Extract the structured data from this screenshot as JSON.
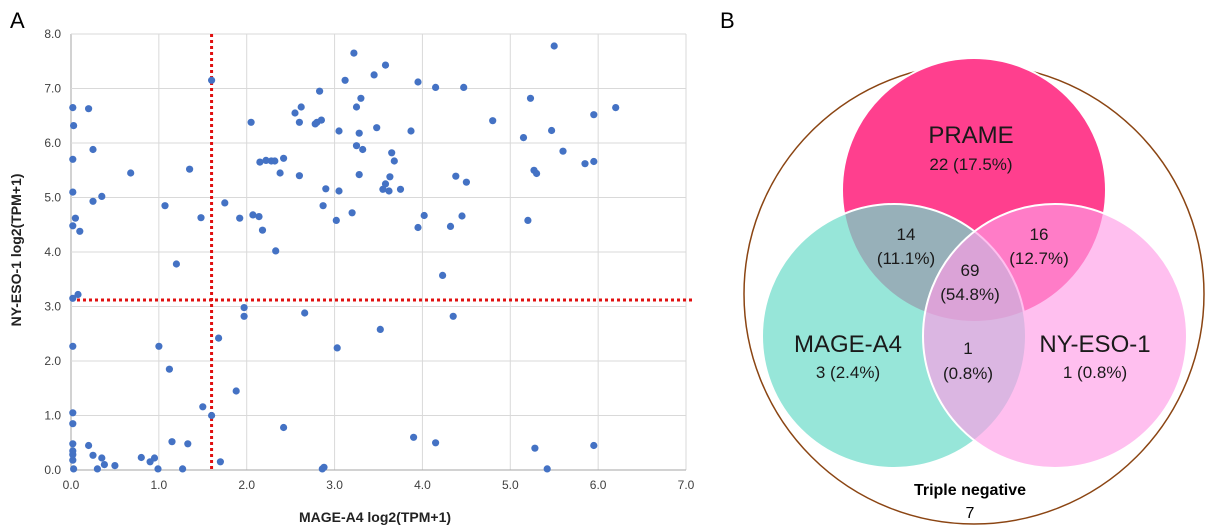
{
  "panels": {
    "a_label": "A",
    "b_label": "B"
  },
  "chart_data": [
    {
      "type": "scatter",
      "title": "",
      "xlabel": "MAGE-A4 log2(TPM+1)",
      "ylabel": "NY-ESO-1 log2(TPM+1)",
      "xlim": [
        0,
        7
      ],
      "ylim": [
        0,
        8
      ],
      "xticks": [
        "0.0",
        "1.0",
        "2.0",
        "3.0",
        "4.0",
        "5.0",
        "6.0",
        "7.0"
      ],
      "yticks": [
        "0.0",
        "1.0",
        "2.0",
        "3.0",
        "4.0",
        "5.0",
        "6.0",
        "7.0",
        "8.0"
      ],
      "grid": true,
      "point_color": "#4472C4",
      "threshold_color": "#E01010",
      "thresholds": {
        "x": 1.6,
        "y": 3.12
      },
      "points": [
        [
          0.02,
          6.65
        ],
        [
          0.03,
          6.32
        ],
        [
          0.02,
          5.7
        ],
        [
          0.02,
          5.1
        ],
        [
          0.05,
          4.62
        ],
        [
          0.02,
          4.48
        ],
        [
          0.1,
          4.38
        ],
        [
          0.08,
          3.22
        ],
        [
          0.02,
          3.15
        ],
        [
          0.02,
          2.27
        ],
        [
          0.02,
          1.05
        ],
        [
          0.02,
          0.85
        ],
        [
          0.02,
          0.48
        ],
        [
          0.02,
          0.35
        ],
        [
          0.02,
          0.28
        ],
        [
          0.02,
          0.18
        ],
        [
          0.03,
          0.02
        ],
        [
          0.2,
          6.63
        ],
        [
          0.25,
          5.88
        ],
        [
          0.25,
          4.93
        ],
        [
          0.35,
          5.02
        ],
        [
          0.2,
          0.45
        ],
        [
          0.25,
          0.27
        ],
        [
          0.35,
          0.22
        ],
        [
          0.38,
          0.1
        ],
        [
          0.3,
          0.02
        ],
        [
          0.5,
          0.08
        ],
        [
          0.68,
          5.45
        ],
        [
          0.8,
          0.23
        ],
        [
          0.9,
          0.15
        ],
        [
          0.95,
          0.22
        ],
        [
          0.99,
          0.02
        ],
        [
          1.0,
          2.27
        ],
        [
          1.07,
          4.85
        ],
        [
          1.12,
          1.85
        ],
        [
          1.15,
          0.52
        ],
        [
          1.2,
          3.78
        ],
        [
          1.27,
          0.02
        ],
        [
          1.33,
          0.48
        ],
        [
          1.35,
          5.52
        ],
        [
          1.48,
          4.63
        ],
        [
          1.5,
          1.16
        ],
        [
          1.6,
          7.15
        ],
        [
          1.6,
          1.0
        ],
        [
          1.68,
          2.42
        ],
        [
          1.7,
          0.15
        ],
        [
          1.75,
          4.9
        ],
        [
          1.88,
          1.45
        ],
        [
          1.92,
          4.62
        ],
        [
          1.97,
          2.98
        ],
        [
          1.97,
          2.82
        ],
        [
          2.05,
          6.38
        ],
        [
          2.07,
          4.68
        ],
        [
          2.14,
          4.65
        ],
        [
          2.15,
          5.65
        ],
        [
          2.18,
          4.4
        ],
        [
          2.22,
          5.68
        ],
        [
          2.28,
          5.67
        ],
        [
          2.32,
          5.67
        ],
        [
          2.33,
          4.02
        ],
        [
          2.38,
          5.45
        ],
        [
          2.42,
          5.72
        ],
        [
          2.42,
          0.78
        ],
        [
          2.55,
          6.55
        ],
        [
          2.6,
          6.38
        ],
        [
          2.62,
          6.66
        ],
        [
          2.6,
          5.4
        ],
        [
          2.66,
          2.88
        ],
        [
          2.78,
          6.35
        ],
        [
          2.8,
          6.38
        ],
        [
          2.83,
          6.95
        ],
        [
          2.85,
          6.42
        ],
        [
          2.87,
          4.85
        ],
        [
          2.9,
          5.16
        ],
        [
          2.88,
          0.05
        ],
        [
          2.86,
          0.02
        ],
        [
          3.02,
          4.58
        ],
        [
          3.03,
          2.24
        ],
        [
          3.05,
          6.22
        ],
        [
          3.05,
          5.12
        ],
        [
          3.12,
          7.15
        ],
        [
          3.2,
          4.72
        ],
        [
          3.22,
          7.65
        ],
        [
          3.25,
          6.66
        ],
        [
          3.25,
          5.95
        ],
        [
          3.28,
          6.18
        ],
        [
          3.28,
          5.42
        ],
        [
          3.3,
          6.82
        ],
        [
          3.32,
          5.88
        ],
        [
          3.45,
          7.25
        ],
        [
          3.48,
          6.28
        ],
        [
          3.52,
          2.58
        ],
        [
          3.55,
          5.15
        ],
        [
          3.58,
          7.43
        ],
        [
          3.58,
          5.25
        ],
        [
          3.62,
          5.12
        ],
        [
          3.63,
          5.38
        ],
        [
          3.65,
          5.82
        ],
        [
          3.68,
          5.67
        ],
        [
          3.75,
          5.15
        ],
        [
          3.87,
          6.22
        ],
        [
          3.9,
          0.6
        ],
        [
          3.95,
          7.12
        ],
        [
          3.95,
          4.45
        ],
        [
          4.02,
          4.67
        ],
        [
          4.15,
          7.02
        ],
        [
          4.15,
          0.5
        ],
        [
          4.23,
          3.57
        ],
        [
          4.32,
          4.47
        ],
        [
          4.35,
          2.82
        ],
        [
          4.38,
          5.39
        ],
        [
          4.45,
          4.66
        ],
        [
          4.47,
          7.02
        ],
        [
          4.5,
          5.28
        ],
        [
          4.8,
          6.41
        ],
        [
          5.15,
          6.1
        ],
        [
          5.2,
          4.58
        ],
        [
          5.23,
          6.82
        ],
        [
          5.27,
          5.5
        ],
        [
          5.3,
          5.44
        ],
        [
          5.28,
          0.4
        ],
        [
          5.42,
          0.02
        ],
        [
          5.47,
          6.23
        ],
        [
          5.5,
          7.78
        ],
        [
          5.6,
          5.85
        ],
        [
          5.85,
          5.62
        ],
        [
          5.95,
          6.52
        ],
        [
          5.95,
          5.66
        ],
        [
          5.95,
          0.45
        ],
        [
          6.2,
          6.65
        ]
      ]
    },
    {
      "type": "venn",
      "sets": [
        {
          "name": "PRAME",
          "value": "22 (17.5%)",
          "color": "#FF3F8E"
        },
        {
          "name": "MAGE-A4",
          "value": "3 (2.4%)",
          "color": "#6FDCCB"
        },
        {
          "name": "NY-ESO-1",
          "value": "1 (0.8%)",
          "color": "#FF9DE6"
        }
      ],
      "intersections": [
        {
          "sets": [
            "PRAME",
            "MAGE-A4"
          ],
          "count": "14",
          "pct": "(11.1%)"
        },
        {
          "sets": [
            "PRAME",
            "NY-ESO-1"
          ],
          "count": "16",
          "pct": "(12.7%)"
        },
        {
          "sets": [
            "PRAME",
            "MAGE-A4",
            "NY-ESO-1"
          ],
          "count": "69",
          "pct": "(54.8%)"
        },
        {
          "sets": [
            "MAGE-A4",
            "NY-ESO-1"
          ],
          "count": "1",
          "pct": "(0.8%)"
        }
      ],
      "outside": {
        "label": "Triple negative",
        "value": "7"
      },
      "outline_color": "#8B4513"
    }
  ]
}
